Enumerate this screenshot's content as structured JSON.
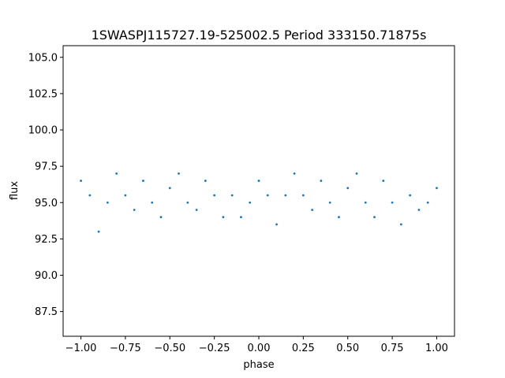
{
  "chart_data": {
    "type": "scatter",
    "title": "1SWASPJ115727.19-525002.5 Period 333150.71875s",
    "xlabel": "phase",
    "ylabel": "flux",
    "xlim": [
      -1.1,
      1.1
    ],
    "ylim": [
      85.8,
      105.8
    ],
    "x_ticks": [
      -1.0,
      -0.75,
      -0.5,
      -0.25,
      0.0,
      0.25,
      0.5,
      0.75,
      1.0
    ],
    "x_tick_labels": [
      "−1.00",
      "−0.75",
      "−0.50",
      "−0.25",
      "0.00",
      "0.25",
      "0.50",
      "0.75",
      "1.00"
    ],
    "y_ticks": [
      87.5,
      90.0,
      92.5,
      95.0,
      97.5,
      100.0,
      102.5,
      105.0
    ],
    "y_tick_labels": [
      "87.5",
      "90.0",
      "92.5",
      "95.0",
      "97.5",
      "100.0",
      "102.5",
      "105.0"
    ],
    "grid": false,
    "legend": "none",
    "point_color": "#1f77b4",
    "series": [
      {
        "x": [
          -1.0,
          -0.95,
          -0.9,
          -0.85,
          -0.8,
          -0.75,
          -0.7,
          -0.65,
          -0.6,
          -0.55,
          -0.5,
          -0.45,
          -0.4,
          -0.35,
          -0.3,
          -0.25,
          -0.2,
          -0.15,
          -0.1,
          -0.05,
          0.0,
          0.05,
          0.1,
          0.15,
          0.2,
          0.25,
          0.3,
          0.35,
          0.4,
          0.45,
          0.5,
          0.55,
          0.6,
          0.65,
          0.7,
          0.75,
          0.8,
          0.85,
          0.9,
          0.95,
          1.0
        ],
        "y": [
          96.5,
          95.5,
          93.0,
          95.0,
          97.0,
          95.5,
          94.5,
          96.5,
          95.0,
          94.0,
          96.0,
          97.0,
          95.0,
          94.5,
          96.5,
          95.5,
          94.0,
          95.5,
          94.0,
          95.0,
          96.5,
          95.5,
          93.5,
          95.5,
          97.0,
          95.5,
          94.5,
          96.5,
          95.0,
          94.0,
          96.0,
          97.0,
          95.0,
          94.0,
          96.5,
          95.0,
          93.5,
          95.5,
          94.5,
          95.0,
          96.0
        ]
      }
    ]
  }
}
